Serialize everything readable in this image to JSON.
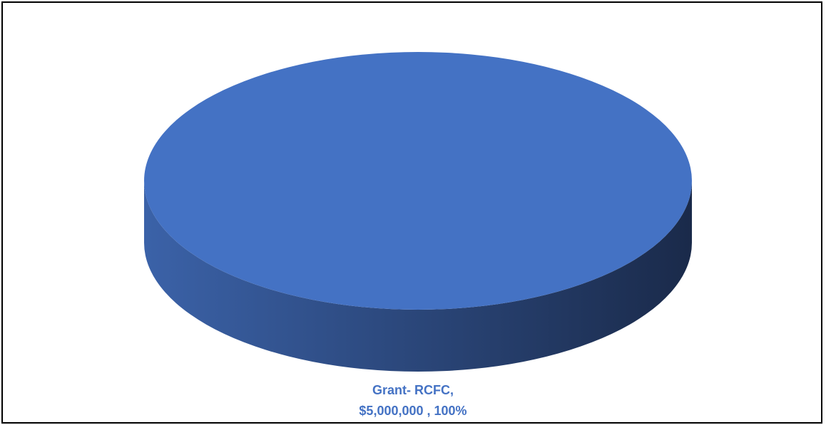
{
  "chart_data": {
    "type": "pie",
    "style": "3d",
    "title": "",
    "categories": [
      "Grant- RCFC"
    ],
    "values": [
      5000000
    ],
    "percentages": [
      100
    ],
    "data_labels": [
      {
        "category_text": "Grant- RCFC,",
        "value_text": "$5,000,000 , 100%"
      }
    ],
    "colors": {
      "slice_top": "#4472C4",
      "side_light": "#3B62A8",
      "side_dark": "#1A2A4A",
      "label": "#4472C4"
    },
    "legend": "none",
    "grid": false
  }
}
